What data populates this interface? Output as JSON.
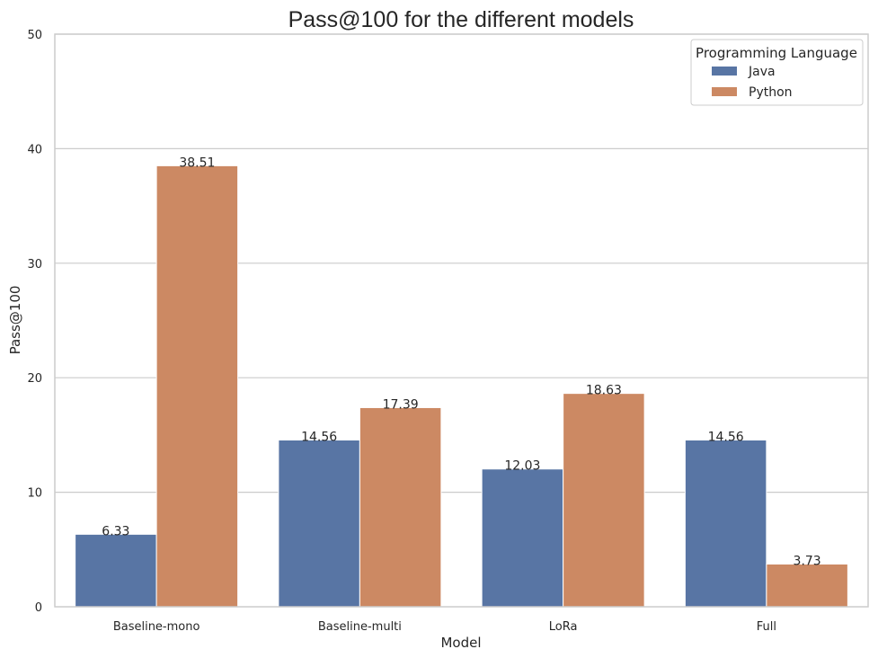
{
  "chart_data": {
    "type": "bar",
    "title": "Pass@100 for the different models",
    "xlabel": "Model",
    "ylabel": "Pass@100",
    "categories": [
      "Baseline-mono",
      "Baseline-multi",
      "LoRa",
      "Full"
    ],
    "series": [
      {
        "name": "Java",
        "values": [
          6.33,
          14.56,
          12.03,
          14.56
        ],
        "labels": [
          "6.33",
          "14.56",
          "12.03",
          "14.56"
        ],
        "color": "#5875a4"
      },
      {
        "name": "Python",
        "values": [
          38.51,
          17.39,
          18.63,
          3.73
        ],
        "labels": [
          "38.51",
          "17.39",
          "18.63",
          "3.73"
        ],
        "color": "#cc8963"
      }
    ],
    "ylim": [
      0,
      50
    ],
    "yticks": [
      0,
      10,
      20,
      30,
      40,
      50
    ],
    "ytick_labels": [
      "0",
      "10",
      "20",
      "30",
      "40",
      "50"
    ],
    "grid": "horizontal",
    "legend": {
      "title": "Programming Language",
      "position": "top-right",
      "entries": [
        "Java",
        "Python"
      ]
    },
    "colors": {
      "grid": "#cccccc",
      "axes_frame": "#cccccc",
      "text": "#262626",
      "background": "#ffffff"
    }
  }
}
